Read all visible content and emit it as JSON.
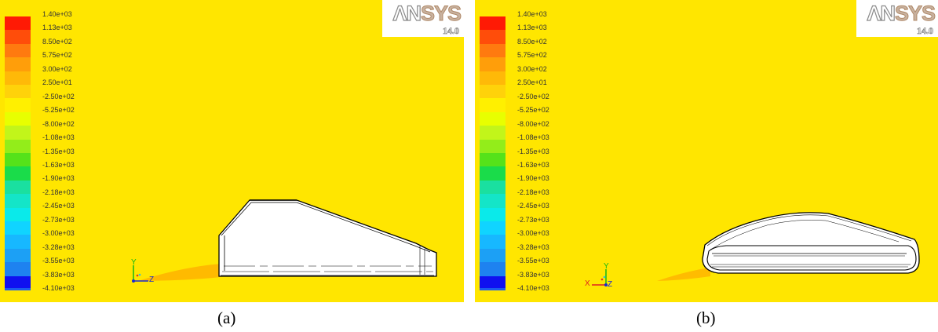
{
  "legend_labels": [
    "1.40e+03",
    "1.13e+03",
    "8.50e+02",
    "5.75e+02",
    "3.00e+02",
    "2.50e+01",
    "-2.50e+02",
    "-5.25e+02",
    "-8.00e+02",
    "-1.08e+03",
    "-1.35e+03",
    "-1.63e+03",
    "-1.90e+03",
    "-2.18e+03",
    "-2.45e+03",
    "-2.73e+03",
    "-3.00e+03",
    "-3.28e+03",
    "-3.55e+03",
    "-3.83e+03",
    "-4.10e+03"
  ],
  "legend_colors": [
    "#ff1a05",
    "#ff4d0a",
    "#ff7a0f",
    "#ff9e0a",
    "#ffb908",
    "#ffd20a",
    "#fff000",
    "#e8ff00",
    "#c2f51a",
    "#93ed1a",
    "#55e21a",
    "#1adc4a",
    "#1ae0a0",
    "#14e5c8",
    "#0aeaea",
    "#10d4ff",
    "#17b8ff",
    "#1ca0f5",
    "#1e82f0",
    "#1a5af0",
    "#1010f0"
  ],
  "logo": {
    "brand_a": "ΛN",
    "brand_b": "SYS",
    "version": "14.0"
  },
  "axes": {
    "y": "Y",
    "z": "Z",
    "x": "X"
  },
  "captions": {
    "a": "(a)",
    "b": "(b)"
  }
}
